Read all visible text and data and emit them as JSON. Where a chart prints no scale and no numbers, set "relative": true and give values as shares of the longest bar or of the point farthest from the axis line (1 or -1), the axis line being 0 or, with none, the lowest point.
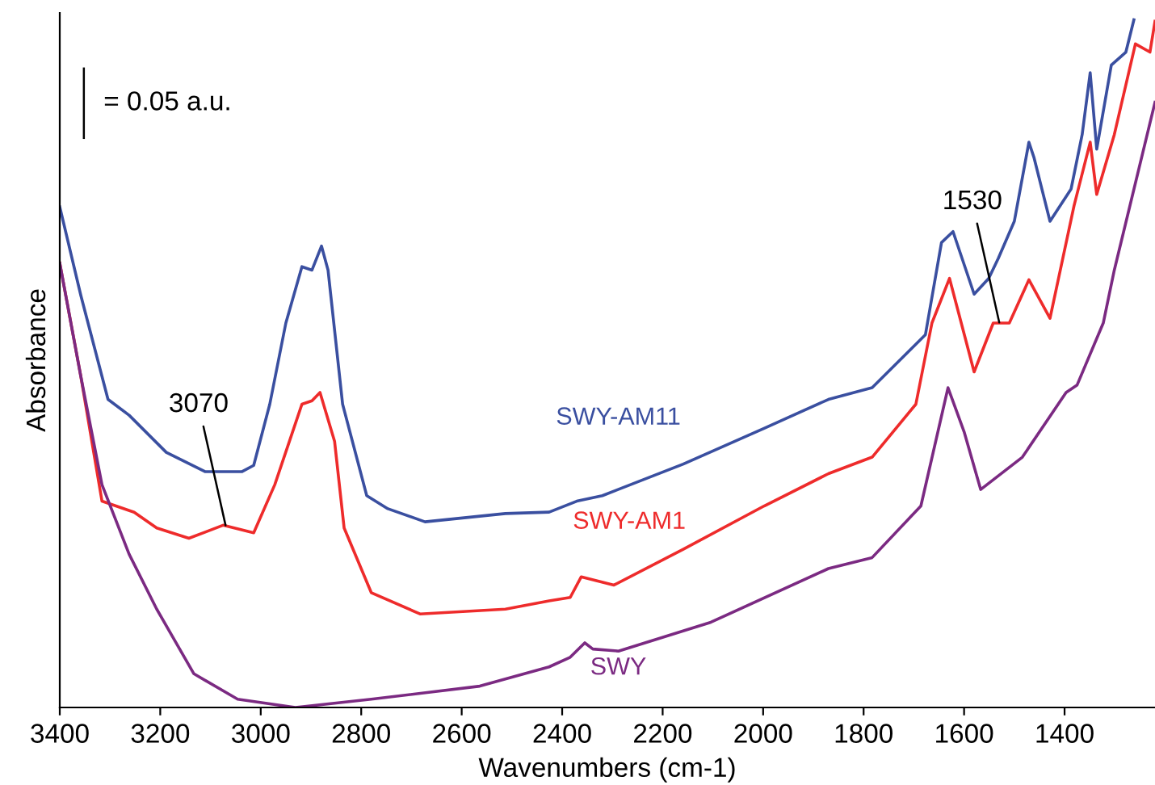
{
  "chart_data": {
    "type": "line",
    "xlabel": "Wavenumbers (cm-1)",
    "ylabel": "Absorbance",
    "relative": true,
    "tick_labels": "x",
    "grid": false,
    "legend": false,
    "marker": "none",
    "line_style": "solid",
    "xlim": [
      3400,
      1220
    ],
    "xticks": [
      3400,
      3200,
      3000,
      2800,
      2600,
      2400,
      2200,
      2000,
      1800,
      1600,
      1400
    ],
    "annotations": [
      "= 0.05 a.u.",
      {
        "text": "3070",
        "x": 3070,
        "y": 0.265
      },
      {
        "text": "1530",
        "x": 1530,
        "y": 0.56
      }
    ],
    "series": [
      {
        "name": "SWY-AM11",
        "color": "#3a4fa0",
        "x": [
          3400,
          3358,
          3304,
          3262,
          3188,
          3111,
          3037,
          3014,
          2982,
          2950,
          2918,
          2898,
          2879,
          2866,
          2837,
          2789,
          2747,
          2673,
          2513,
          2426,
          2371,
          2320,
          2159,
          1998,
          1870,
          1783,
          1677,
          1645,
          1622,
          1580,
          1551,
          1532,
          1500,
          1471,
          1461,
          1429,
          1387,
          1365,
          1349,
          1336,
          1307,
          1278,
          1262
        ],
        "values": [
          0.728,
          0.599,
          0.448,
          0.425,
          0.371,
          0.343,
          0.343,
          0.352,
          0.441,
          0.559,
          0.641,
          0.636,
          0.671,
          0.636,
          0.441,
          0.308,
          0.289,
          0.27,
          0.282,
          0.284,
          0.3,
          0.308,
          0.354,
          0.406,
          0.448,
          0.465,
          0.542,
          0.676,
          0.692,
          0.601,
          0.624,
          0.653,
          0.707,
          0.822,
          0.8,
          0.707,
          0.754,
          0.833,
          0.923,
          0.812,
          0.934,
          0.953,
          1.0
        ]
      },
      {
        "name": "SWY-AM1",
        "color": "#ee2b2b",
        "x": [
          3400,
          3358,
          3316,
          3252,
          3207,
          3143,
          3075,
          3014,
          2972,
          2918,
          2898,
          2882,
          2853,
          2834,
          2780,
          2683,
          2513,
          2426,
          2384,
          2362,
          2297,
          2159,
          1998,
          1870,
          1783,
          1696,
          1664,
          1629,
          1580,
          1542,
          1510,
          1471,
          1429,
          1381,
          1349,
          1336,
          1301,
          1259,
          1230,
          1220
        ],
        "values": [
          0.646,
          0.481,
          0.3,
          0.284,
          0.261,
          0.246,
          0.265,
          0.254,
          0.324,
          0.441,
          0.446,
          0.458,
          0.387,
          0.261,
          0.167,
          0.136,
          0.143,
          0.155,
          0.16,
          0.19,
          0.178,
          0.23,
          0.293,
          0.34,
          0.364,
          0.441,
          0.559,
          0.624,
          0.488,
          0.559,
          0.559,
          0.622,
          0.566,
          0.73,
          0.822,
          0.746,
          0.833,
          0.965,
          0.953,
          0.998
        ]
      },
      {
        "name": "SWY",
        "color": "#7b2a82",
        "x": [
          3400,
          3358,
          3316,
          3262,
          3207,
          3133,
          3046,
          2931,
          2780,
          2564,
          2426,
          2384,
          2355,
          2339,
          2288,
          2104,
          1870,
          1783,
          1686,
          1632,
          1600,
          1567,
          1484,
          1397,
          1375,
          1323,
          1301,
          1220
        ],
        "values": [
          0.646,
          0.481,
          0.324,
          0.223,
          0.143,
          0.049,
          0.012,
          0.0,
          0.012,
          0.031,
          0.059,
          0.073,
          0.094,
          0.085,
          0.082,
          0.124,
          0.202,
          0.218,
          0.293,
          0.465,
          0.401,
          0.317,
          0.364,
          0.458,
          0.469,
          0.559,
          0.636,
          0.88
        ]
      }
    ]
  }
}
